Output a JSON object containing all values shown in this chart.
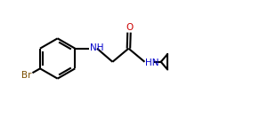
{
  "bg_color": "#ffffff",
  "bond_color": "#000000",
  "br_color": "#7b4f00",
  "nh_color": "#0000cc",
  "o_color": "#cc0000",
  "line_width": 1.5,
  "font_size_atom": 7.5,
  "fig_width": 2.92,
  "fig_height": 1.32,
  "dpi": 100,
  "xlim": [
    0.0,
    10.0
  ],
  "ylim": [
    0.5,
    4.0
  ]
}
